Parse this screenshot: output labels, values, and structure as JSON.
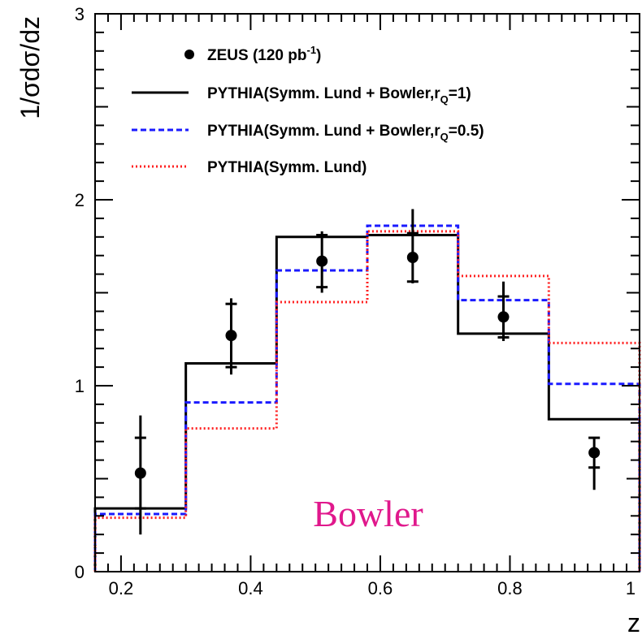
{
  "chart_data": {
    "type": "step-histogram",
    "title": "",
    "xlabel": "z",
    "ylabel": "1/σdσ/dz",
    "xlim": [
      0.16,
      1.0
    ],
    "ylim": [
      0,
      3
    ],
    "x_ticks": [
      "0.2",
      "0.4",
      "0.6",
      "0.8",
      "1"
    ],
    "y_ticks": [
      "0",
      "1",
      "2",
      "3"
    ],
    "bin_edges": [
      0.16,
      0.3,
      0.44,
      0.58,
      0.72,
      0.86,
      1.0
    ],
    "series": [
      {
        "name_main": "ZEUS (120 pb",
        "name_sup": "-1",
        "name_tail": ")",
        "kind": "points",
        "color": "#000000",
        "x": [
          0.23,
          0.37,
          0.51,
          0.65,
          0.79,
          0.93
        ],
        "y": [
          0.53,
          1.27,
          1.67,
          1.69,
          1.37,
          0.64
        ],
        "stat_err": [
          0.19,
          0.17,
          0.14,
          0.13,
          0.11,
          0.08
        ],
        "tot_err_up": [
          0.31,
          0.2,
          0.16,
          0.26,
          0.19,
          0.08
        ],
        "tot_err_down": [
          0.33,
          0.21,
          0.17,
          0.14,
          0.13,
          0.2
        ]
      },
      {
        "name_main": "PYTHIA(Symm. Lund + Bowler,r",
        "name_sub": "Q",
        "name_tail": "=1)",
        "kind": "step",
        "style": "solid",
        "color": "#000000",
        "values": [
          0.34,
          1.12,
          1.8,
          1.81,
          1.28,
          0.82
        ]
      },
      {
        "name_main": "PYTHIA(Symm. Lund + Bowler,r",
        "name_sub": "Q",
        "name_tail": "=0.5)",
        "kind": "step",
        "style": "dashed",
        "color": "#1a1aff",
        "values": [
          0.31,
          0.91,
          1.62,
          1.86,
          1.46,
          1.01
        ]
      },
      {
        "name_main": "PYTHIA(Symm. Lund)",
        "kind": "step",
        "style": "dotted",
        "color": "#ff2020",
        "values": [
          0.29,
          0.77,
          1.45,
          1.83,
          1.59,
          1.23
        ]
      }
    ],
    "annotation": {
      "text": "Bowler",
      "color": "#e0188c"
    },
    "legend_position": "top-left",
    "grid": false
  }
}
